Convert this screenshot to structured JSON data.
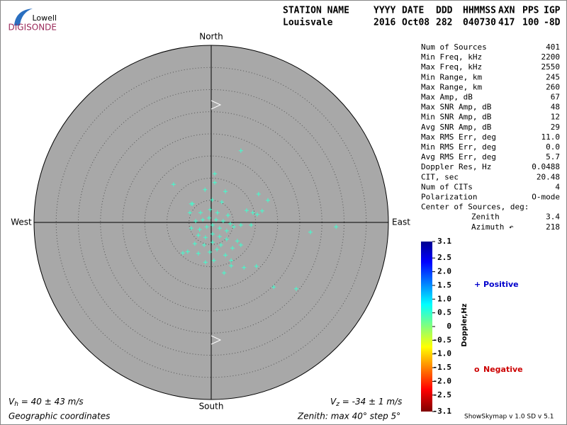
{
  "logo": {
    "top": "Lowell",
    "bottom": "DIGISONDE"
  },
  "header": {
    "columns": [
      "STATION NAME",
      "YYYY",
      "DATE",
      "DDD",
      "HHMMSS",
      "AXN",
      "PPS",
      "IGP"
    ],
    "values": [
      "Louisvale",
      "2016",
      "Oct08",
      "282",
      "040730",
      "417",
      "100",
      "-8D"
    ]
  },
  "stats": [
    [
      "Num of Sources",
      "401"
    ],
    [
      "Min Freq, kHz",
      "2200"
    ],
    [
      "Max Freq, kHz",
      "2550"
    ],
    [
      "Min Range, km",
      "245"
    ],
    [
      "Max Range, km",
      "260"
    ],
    [
      "Max Amp, dB",
      "67"
    ],
    [
      "Max SNR Amp, dB",
      "48"
    ],
    [
      "Min SNR Amp, dB",
      "12"
    ],
    [
      "Avg SNR Amp, dB",
      "29"
    ],
    [
      "Max RMS Err, deg",
      "11.0"
    ],
    [
      "Min RMS Err, deg",
      "0.0"
    ],
    [
      "Avg RMS Err, deg",
      "5.7"
    ],
    [
      "Doppler Res, Hz",
      "0.0488"
    ],
    [
      "CIT, sec",
      "20.48"
    ],
    [
      "Num of CITs",
      "4"
    ],
    [
      "Polarization",
      "O-mode"
    ],
    [
      "Center of Sources, deg:",
      ""
    ]
  ],
  "center": [
    [
      "Zenith",
      "3.4"
    ],
    [
      "Azimuth ↶",
      "218"
    ]
  ],
  "chart_data": {
    "type": "skymap",
    "directions": {
      "north": "North",
      "south": "South",
      "east": "East",
      "west": "West"
    },
    "xlim": [
      -40,
      40
    ],
    "ylim": [
      -40,
      40
    ],
    "rticks": [
      5,
      10,
      15,
      20,
      25,
      30,
      35
    ],
    "series": [
      {
        "name": "Positive",
        "symbol": "+",
        "color": "#3fffcf",
        "label_color": "#0000cc",
        "x": [
          6.7,
          0.8,
          -8.5,
          0.8,
          -1.4,
          3.2,
          10.7,
          12.8,
          -4.5,
          0.2,
          2.4,
          8.0,
          9.4,
          11.5,
          10.4,
          -4.8,
          -2.4,
          -0.2,
          1.4,
          3.8,
          -3.5,
          -1.9,
          -0.5,
          1.1,
          2.7,
          4.3,
          -4.5,
          -2.6,
          -1.0,
          0.3,
          1.9,
          3.5,
          5.1,
          6.7,
          9.0,
          -2.9,
          -1.3,
          0.3,
          1.9,
          3.5,
          5.9,
          -3.7,
          -1.6,
          0.3,
          2.2,
          4.8,
          6.7,
          -5.3,
          -2.9,
          -0.3,
          1.3,
          3.2,
          -1.3,
          0.6,
          4.5,
          2.9,
          4.5,
          7.4,
          10.2,
          22.4,
          28.2,
          14.1,
          19.2,
          -6.4,
          -4.2
        ],
        "values": [
          16.2,
          11.0,
          8.6,
          9.0,
          7.4,
          7.0,
          6.4,
          5.0,
          4.2,
          5.1,
          4.6,
          2.7,
          2.2,
          2.6,
          1.8,
          2.2,
          2.2,
          2.9,
          2.2,
          1.6,
          0.3,
          0.6,
          1.0,
          0.6,
          0.3,
          -0.3,
          -1.3,
          -1.6,
          -1.0,
          -0.6,
          -1.3,
          -1.9,
          -1.0,
          -0.6,
          -0.6,
          -2.9,
          -3.4,
          -2.6,
          -3.2,
          -3.8,
          -4.2,
          -4.8,
          -5.1,
          -4.5,
          -5.1,
          -5.8,
          -5.1,
          -6.6,
          -7.0,
          -6.7,
          -6.1,
          -7.4,
          -9.0,
          -8.6,
          -8.6,
          -11.4,
          -9.8,
          -10.2,
          -9.9,
          -2.2,
          -1.0,
          -14.6,
          -15.0,
          -6.9,
          4.2
        ]
      },
      {
        "name": "Negative",
        "symbol": "o",
        "color": "#cc0000",
        "label_color": "#cc0000",
        "x": [],
        "values": []
      }
    ],
    "colorbar": {
      "label": "Doppler,Hz",
      "clim": [
        -3.1,
        3.1
      ],
      "ticks": [
        3.1,
        2.5,
        {
          "value": 2,
          "label": "2.0"
        },
        1.5,
        {
          "value": 1,
          "label": "1.0"
        },
        0.5,
        0,
        -0.5,
        {
          "value": -1,
          "label": "-1.0"
        },
        -1.5,
        {
          "value": -2,
          "label": "-2.0"
        },
        -2.5,
        -3.1
      ]
    }
  },
  "footer": {
    "vh_symbol": "V",
    "vh_sub": "h",
    "vh_text": " = 40 ± 43 m/s",
    "vz_symbol": "V",
    "vz_sub": "z",
    "vz_text": " = -34 ± 1 m/s",
    "coords": "Geographic coordinates",
    "zenith": "Zenith: max 40°  step 5°",
    "version": "ShowSkymap v 1.0  SD v 5.1"
  }
}
